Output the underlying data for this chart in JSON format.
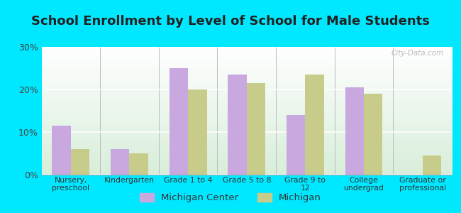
{
  "title": "School Enrollment by Level of School for Male Students",
  "categories": [
    "Nursery,\npreschool",
    "Kindergarten",
    "Grade 1 to 4",
    "Grade 5 to 8",
    "Grade 9 to\n12",
    "College\nundergrad",
    "Graduate or\nprofessional"
  ],
  "michigan_center": [
    11.5,
    6.0,
    25.0,
    23.5,
    14.0,
    20.5,
    0.0
  ],
  "michigan": [
    6.0,
    5.0,
    20.0,
    21.5,
    23.5,
    19.0,
    4.5
  ],
  "color_mc": "#c9a8e0",
  "color_mi": "#c8cc8a",
  "ylim": [
    0,
    30
  ],
  "yticks": [
    0,
    10,
    20,
    30
  ],
  "ytick_labels": [
    "0%",
    "10%",
    "20%",
    "30%"
  ],
  "background_fig": "#00e8ff",
  "legend_mc": "Michigan Center",
  "legend_mi": "Michigan",
  "title_fontsize": 13,
  "watermark": "City-Data.com"
}
